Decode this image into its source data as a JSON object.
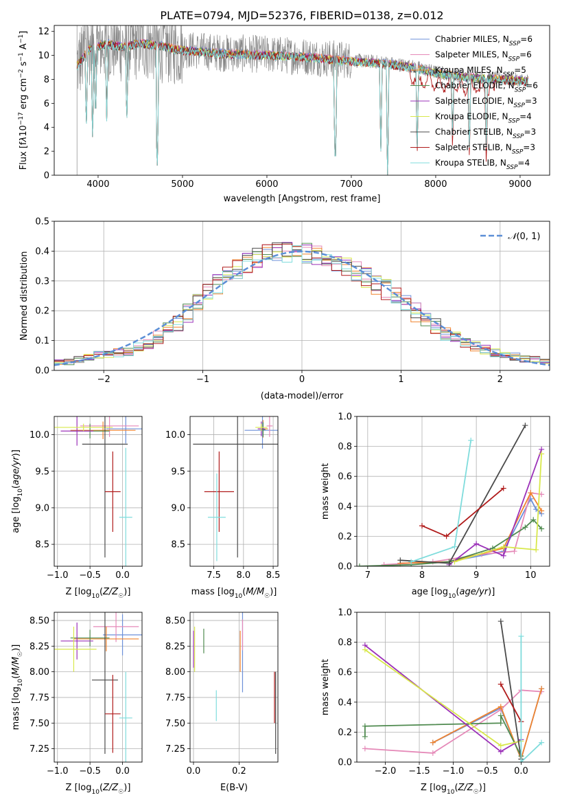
{
  "figure": {
    "title": "PLATE=0794, MJD=52376, FIBERID=0138, z=0.012"
  },
  "models": [
    {
      "name": "Chabrier MILES",
      "nssp": "6",
      "color": "#6b8fd8"
    },
    {
      "name": "Salpeter MILES",
      "nssp": "6",
      "color": "#e589b8"
    },
    {
      "name": "Kroupa MILES",
      "nssp": "5",
      "color": "#f0842f"
    },
    {
      "name": "Chabrier ELODIE",
      "nssp": "6",
      "color": "#4f8a4f"
    },
    {
      "name": "Salpeter ELODIE",
      "nssp": "3",
      "color": "#9b30b8"
    },
    {
      "name": "Kroupa ELODIE",
      "nssp": "4",
      "color": "#d8e84a"
    },
    {
      "name": "Chabrier STELIB",
      "nssp": "3",
      "color": "#4a4a4a"
    },
    {
      "name": "Salpeter STELIB",
      "nssp": "3",
      "color": "#b01a1a"
    },
    {
      "name": "Kroupa STELIB",
      "nssp": "4",
      "color": "#7fdcdc"
    }
  ],
  "legend_sub": "SSP",
  "chart_data": [
    {
      "id": "spectrum",
      "type": "line",
      "xlabel": "wavelength [Angstrom, rest frame]",
      "ylabel": "Flux [f",
      "xlim": [
        3480,
        9350
      ],
      "ylim": [
        0,
        12.5
      ],
      "xticks": [
        4000,
        5000,
        6000,
        7000,
        8000,
        9000
      ],
      "yticks": [
        0,
        2,
        4,
        6,
        8,
        10,
        12
      ],
      "grid": false,
      "legend": "top-right",
      "data_range": [
        3750,
        9100
      ],
      "continuum": [
        [
          3750,
          9.2
        ],
        [
          3900,
          10.6
        ],
        [
          4100,
          11.0
        ],
        [
          4300,
          10.8
        ],
        [
          4500,
          11.1
        ],
        [
          4800,
          10.8
        ],
        [
          5000,
          10.5
        ],
        [
          5500,
          10.2
        ],
        [
          6000,
          10.1
        ],
        [
          6500,
          9.9
        ],
        [
          7000,
          9.6
        ],
        [
          7400,
          9.4
        ],
        [
          7700,
          9.1
        ],
        [
          8000,
          8.6
        ],
        [
          8300,
          8.3
        ],
        [
          8700,
          8.1
        ],
        [
          9100,
          7.9
        ]
      ],
      "model_dips": [
        [
          3860,
          3.5
        ],
        [
          3935,
          2.8
        ],
        [
          3970,
          4.0
        ],
        [
          4102,
          4.5
        ],
        [
          4340,
          4.0
        ],
        [
          4700,
          0.0
        ],
        [
          6810,
          0.0
        ],
        [
          7430,
          0.0
        ],
        [
          7350,
          2.0
        ],
        [
          7780,
          1.5
        ],
        [
          8200,
          2.5
        ],
        [
          8400,
          1.5
        ],
        [
          8600,
          1.5
        ]
      ]
    },
    {
      "id": "residuals",
      "type": "histogram",
      "xlabel": "(data-model)/error",
      "ylabel": "Normed distribution",
      "xlim": [
        -2.5,
        2.5
      ],
      "ylim": [
        0,
        0.5
      ],
      "xticks": [
        -2,
        -1,
        0,
        1,
        2
      ],
      "yticks": [
        0,
        0.1,
        0.2,
        0.3,
        0.4,
        0.5
      ],
      "grid": true,
      "legend": "top-right",
      "bin_width": 0.1,
      "normal_label": "N(0,1)",
      "bins_center": [
        -2.45,
        -2.35,
        -2.25,
        -2.15,
        -2.05,
        -1.95,
        -1.85,
        -1.75,
        -1.65,
        -1.55,
        -1.45,
        -1.35,
        -1.25,
        -1.15,
        -1.05,
        -0.95,
        -0.85,
        -0.75,
        -0.65,
        -0.55,
        -0.45,
        -0.35,
        -0.25,
        -0.15,
        -0.05,
        0.05,
        0.15,
        0.25,
        0.35,
        0.45,
        0.55,
        0.65,
        0.75,
        0.85,
        0.95,
        1.05,
        1.15,
        1.25,
        1.35,
        1.45,
        1.55,
        1.65,
        1.75,
        1.85,
        1.95,
        2.05,
        2.15,
        2.25,
        2.35,
        2.45
      ],
      "hist_base": [
        0.025,
        0.03,
        0.035,
        0.045,
        0.05,
        0.055,
        0.06,
        0.065,
        0.075,
        0.09,
        0.11,
        0.135,
        0.16,
        0.19,
        0.22,
        0.255,
        0.29,
        0.315,
        0.34,
        0.36,
        0.38,
        0.395,
        0.4,
        0.395,
        0.4,
        0.395,
        0.385,
        0.37,
        0.355,
        0.345,
        0.33,
        0.31,
        0.29,
        0.27,
        0.245,
        0.22,
        0.195,
        0.17,
        0.15,
        0.125,
        0.11,
        0.095,
        0.08,
        0.07,
        0.06,
        0.05,
        0.045,
        0.04,
        0.035,
        0.03
      ]
    },
    {
      "id": "age_vs_Z",
      "type": "scatter",
      "xlabel": "Z [log10(Z/Z☉)]",
      "ylabel": "age  [log10(age/yr)]",
      "xlim": [
        -1.05,
        0.3
      ],
      "ylim": [
        8.2,
        10.25
      ],
      "xticks": [
        -1.0,
        -0.5,
        0.0
      ],
      "yticks": [
        8.5,
        9.0,
        9.5,
        10.0
      ],
      "grid": true,
      "points": [
        {
          "m": 0,
          "x": 0.05,
          "y": 10.08,
          "xerr": 0.3,
          "yerr": 0.2
        },
        {
          "m": 1,
          "x": -0.2,
          "y": 10.12,
          "xerr": 0.45,
          "yerr": 0.15
        },
        {
          "m": 2,
          "x": -0.3,
          "y": 10.06,
          "xerr": 0.5,
          "yerr": 0.12
        },
        {
          "m": 3,
          "x": -0.5,
          "y": 10.05,
          "xerr": 0.3,
          "yerr": 0.1
        },
        {
          "m": 4,
          "x": -0.7,
          "y": 10.05,
          "xerr": 0.25,
          "yerr": 0.2
        },
        {
          "m": 5,
          "x": -0.6,
          "y": 10.1,
          "xerr": 0.45,
          "yerr": 0.05
        },
        {
          "m": 6,
          "x": -0.27,
          "y": 9.87,
          "xerr": 0.35,
          "yerr": 1.55
        },
        {
          "m": 7,
          "x": -0.15,
          "y": 9.22,
          "xerr": 0.12,
          "yerr": 0.55
        },
        {
          "m": 8,
          "x": 0.05,
          "y": 8.87,
          "xerr": 0.1,
          "yerr": 0.95
        }
      ]
    },
    {
      "id": "age_vs_mass",
      "type": "scatter",
      "xlabel": "mass [log10(M/M☉)]",
      "ylabel": "",
      "xlim": [
        7.1,
        8.58
      ],
      "ylim": [
        8.2,
        10.25
      ],
      "xticks": [
        7.5,
        8.0,
        8.5
      ],
      "yticks": [
        8.5,
        9.0,
        9.5,
        10.0
      ],
      "grid": true,
      "points": [
        {
          "m": 0,
          "x": 8.32,
          "y": 10.06,
          "xerr": 0.3,
          "yerr": 0.25
        },
        {
          "m": 1,
          "x": 8.44,
          "y": 10.12,
          "xerr": 0.05,
          "yerr": 0.15
        },
        {
          "m": 2,
          "x": 8.33,
          "y": 10.08,
          "xerr": 0.08,
          "yerr": 0.12
        },
        {
          "m": 3,
          "x": 8.33,
          "y": 10.07,
          "xerr": 0.04,
          "yerr": 0.1
        },
        {
          "m": 4,
          "x": 8.3,
          "y": 10.08,
          "xerr": 0.06,
          "yerr": 0.1
        },
        {
          "m": 5,
          "x": 8.3,
          "y": 10.1,
          "xerr": 0.1,
          "yerr": 0.05
        },
        {
          "m": 6,
          "x": 7.9,
          "y": 9.87,
          "xerr": 0.75,
          "yerr": 1.55
        },
        {
          "m": 7,
          "x": 7.59,
          "y": 9.22,
          "xerr": 0.25,
          "yerr": 0.55
        },
        {
          "m": 8,
          "x": 7.55,
          "y": 8.87,
          "xerr": 0.15,
          "yerr": 0.6
        }
      ]
    },
    {
      "id": "mass_weight_vs_age",
      "type": "line",
      "xlabel": "age  [log10(age/yr)]",
      "ylabel": "mass weight",
      "xlim": [
        6.8,
        10.35
      ],
      "ylim": [
        0,
        1.0
      ],
      "xticks": [
        7,
        8,
        9,
        10
      ],
      "yticks": [
        0.0,
        0.2,
        0.4,
        0.6,
        0.8,
        1.0
      ],
      "grid": true,
      "series": [
        {
          "m": 0,
          "x": [
            7.6,
            8.5,
            9.5,
            10.0,
            10.1,
            10.2
          ],
          "y": [
            0.02,
            0.03,
            0.1,
            0.45,
            0.38,
            0.35
          ]
        },
        {
          "m": 1,
          "x": [
            7.3,
            8.2,
            9.1,
            9.7,
            10.0,
            10.2
          ],
          "y": [
            0.01,
            0.03,
            0.08,
            0.1,
            0.49,
            0.48
          ]
        },
        {
          "m": 2,
          "x": [
            7.6,
            8.5,
            9.5,
            10.0,
            10.2
          ],
          "y": [
            0.02,
            0.03,
            0.12,
            0.49,
            0.37
          ]
        },
        {
          "m": 3,
          "x": [
            6.85,
            7.8,
            8.5,
            9.3,
            9.9,
            10.05,
            10.2
          ],
          "y": [
            0.0,
            0.01,
            0.03,
            0.12,
            0.26,
            0.31,
            0.25
          ]
        },
        {
          "m": 4,
          "x": [
            8.5,
            9.0,
            9.5,
            10.2
          ],
          "y": [
            0.01,
            0.15,
            0.07,
            0.78
          ]
        },
        {
          "m": 5,
          "x": [
            8.6,
            9.5,
            10.1,
            10.2
          ],
          "y": [
            0.03,
            0.13,
            0.11,
            0.75
          ]
        },
        {
          "m": 6,
          "x": [
            7.6,
            8.5,
            9.9
          ],
          "y": [
            0.04,
            0.02,
            0.94
          ]
        },
        {
          "m": 7,
          "x": [
            8.0,
            8.45,
            9.5
          ],
          "y": [
            0.27,
            0.2,
            0.52
          ]
        },
        {
          "m": 8,
          "x": [
            7.8,
            8.6,
            8.9
          ],
          "y": [
            0.03,
            0.13,
            0.84
          ]
        }
      ]
    },
    {
      "id": "mass_vs_Z",
      "type": "scatter",
      "xlabel": "Z [log10(Z/Z☉)]",
      "ylabel": "mass [log10(M/M☉)]",
      "xlim": [
        -1.05,
        0.3
      ],
      "ylim": [
        7.12,
        8.58
      ],
      "xticks": [
        -1.0,
        -0.5,
        0.0
      ],
      "yticks": [
        7.25,
        7.5,
        7.75,
        8.0,
        8.25,
        8.5
      ],
      "grid": true,
      "points": [
        {
          "m": 0,
          "x": 0.0,
          "y": 8.36,
          "xerr": 0.3,
          "yerr": 0.2
        },
        {
          "m": 1,
          "x": -0.1,
          "y": 8.44,
          "xerr": 0.35,
          "yerr": 0.15
        },
        {
          "m": 2,
          "x": -0.25,
          "y": 8.32,
          "xerr": 0.5,
          "yerr": 0.12
        },
        {
          "m": 3,
          "x": -0.5,
          "y": 8.33,
          "xerr": 0.3,
          "yerr": 0.08
        },
        {
          "m": 4,
          "x": -0.7,
          "y": 8.3,
          "xerr": 0.25,
          "yerr": 0.18
        },
        {
          "m": 5,
          "x": -0.75,
          "y": 8.22,
          "xerr": 0.35,
          "yerr": 0.22
        },
        {
          "m": 6,
          "x": -0.27,
          "y": 7.92,
          "xerr": 0.2,
          "yerr": 0.72
        },
        {
          "m": 7,
          "x": -0.15,
          "y": 7.59,
          "xerr": 0.12,
          "yerr": 0.38
        },
        {
          "m": 8,
          "x": 0.05,
          "y": 7.55,
          "xerr": 0.1,
          "yerr": 0.45
        }
      ]
    },
    {
      "id": "mass_vs_ebv",
      "type": "scatter",
      "xlabel": "E(B-V)",
      "ylabel": "",
      "xlim": [
        -0.015,
        0.37
      ],
      "ylim": [
        7.12,
        8.58
      ],
      "xticks": [
        0.0,
        0.2
      ],
      "yticks": [
        7.25,
        7.5,
        7.75,
        8.0,
        8.25,
        8.5
      ],
      "grid": true,
      "points": [
        {
          "m": 0,
          "x": 0.215,
          "y": 8.22,
          "xerr": 0,
          "yerr": 0.42
        },
        {
          "m": 1,
          "x": 0.215,
          "y": 8.36,
          "xerr": 0,
          "yerr": 0.15
        },
        {
          "m": 2,
          "x": 0.205,
          "y": 8.2,
          "xerr": 0,
          "yerr": 0.2
        },
        {
          "m": 3,
          "x": 0.045,
          "y": 8.3,
          "xerr": 0,
          "yerr": 0.12
        },
        {
          "m": 4,
          "x": 0.0,
          "y": 8.22,
          "xerr": 0,
          "yerr": 0.18
        },
        {
          "m": 5,
          "x": 0.005,
          "y": 8.22,
          "xerr": 0,
          "yerr": 0.22
        },
        {
          "m": 6,
          "x": 0.36,
          "y": 7.6,
          "xerr": 0,
          "yerr": 0.4
        },
        {
          "m": 7,
          "x": 0.355,
          "y": 7.75,
          "xerr": 0,
          "yerr": 0.25
        },
        {
          "m": 8,
          "x": 0.1,
          "y": 7.67,
          "xerr": 0,
          "yerr": 0.15
        }
      ]
    },
    {
      "id": "mass_weight_vs_Z",
      "type": "line",
      "xlabel": "Z [log10(Z/Z☉)]",
      "ylabel": "mass weight",
      "xlim": [
        -2.42,
        0.42
      ],
      "ylim": [
        0,
        1.0
      ],
      "xticks": [
        -2.0,
        -1.5,
        -1.0,
        -0.5,
        0.0
      ],
      "yticks": [
        0.0,
        0.2,
        0.4,
        0.6,
        0.8,
        1.0
      ],
      "grid": true,
      "series": [
        {
          "m": 0,
          "x": [
            -1.3,
            -0.3,
            0.0,
            0.3
          ],
          "y": [
            0.13,
            0.36,
            0.02,
            0.49
          ]
        },
        {
          "m": 1,
          "x": [
            -2.3,
            -1.3,
            -0.3,
            0.0,
            0.3
          ],
          "y": [
            0.09,
            0.06,
            0.35,
            0.48,
            0.47
          ]
        },
        {
          "m": 2,
          "x": [
            -1.3,
            -0.3,
            0.0,
            0.3
          ],
          "y": [
            0.13,
            0.37,
            0.02,
            0.49
          ]
        },
        {
          "m": 3,
          "x": [
            -2.3,
            -2.3,
            -0.3,
            -0.3,
            0.0
          ],
          "y": [
            0.17,
            0.24,
            0.26,
            0.31,
            0.04
          ]
        },
        {
          "m": 4,
          "x": [
            -2.3,
            -0.3,
            0.0
          ],
          "y": [
            0.78,
            0.07,
            0.15
          ]
        },
        {
          "m": 5,
          "x": [
            -2.3,
            -0.3,
            0.0
          ],
          "y": [
            0.75,
            0.11,
            0.14
          ]
        },
        {
          "m": 6,
          "x": [
            -0.3,
            0.0
          ],
          "y": [
            0.94,
            0.02
          ]
        },
        {
          "m": 7,
          "x": [
            -0.3,
            0.0
          ],
          "y": [
            0.52,
            0.27
          ]
        },
        {
          "m": 8,
          "x": [
            0.0,
            0.0,
            0.3
          ],
          "y": [
            0.84,
            0.0,
            0.13
          ]
        }
      ]
    }
  ]
}
